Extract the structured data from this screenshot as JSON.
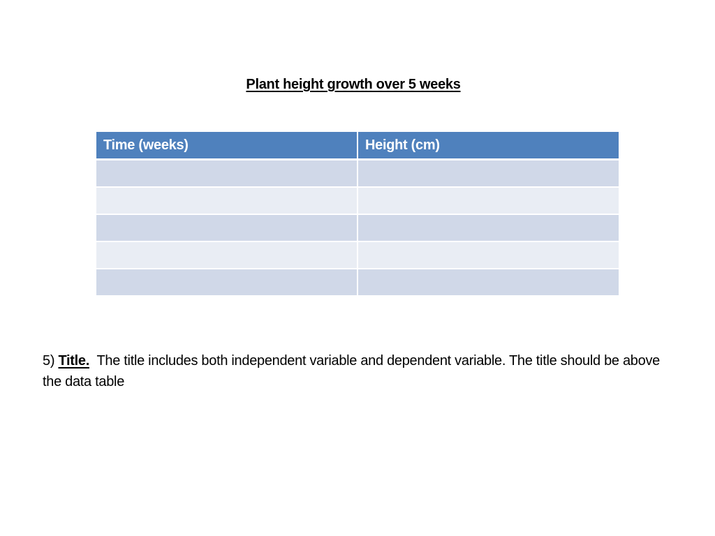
{
  "title": "Plant height growth over 5 weeks",
  "table": {
    "headers": [
      "Time (weeks)",
      "Height (cm)"
    ],
    "rows": [
      [
        "",
        ""
      ],
      [
        "",
        ""
      ],
      [
        "",
        ""
      ],
      [
        "",
        ""
      ],
      [
        "",
        ""
      ]
    ],
    "colors": {
      "header_bg": "#4f81bd",
      "row_dark": "#d0d8e8",
      "row_light": "#e9edf4"
    }
  },
  "note": {
    "number": "5)",
    "label": "Title.",
    "text": "The title includes both independent variable and dependent variable. The title should be above the data table"
  }
}
